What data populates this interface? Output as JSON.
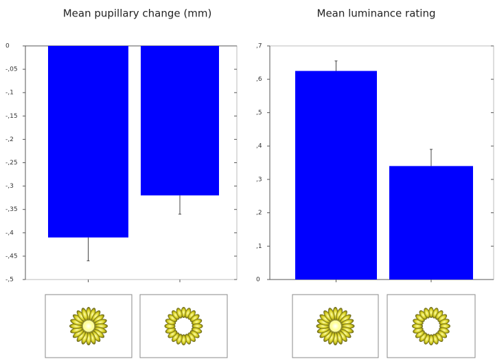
{
  "chart_data": [
    {
      "type": "bar",
      "title": "Mean pupillary change (mm)",
      "categories": [
        null,
        null
      ],
      "values": [
        -0.41,
        -0.32
      ],
      "errors": [
        0.05,
        0.04
      ],
      "color": "#0000ff",
      "ylim": [
        -0.5,
        0
      ],
      "yticks": [
        {
          "value": 0,
          "label": "0"
        },
        {
          "value": -0.05,
          "label": "-,05"
        },
        {
          "value": -0.1,
          "label": "-,1"
        },
        {
          "value": -0.15,
          "label": "-,15"
        },
        {
          "value": -0.2,
          "label": "-,2"
        },
        {
          "value": -0.25,
          "label": "-,25"
        },
        {
          "value": -0.3,
          "label": "-,3"
        },
        {
          "value": -0.35,
          "label": "-,35"
        },
        {
          "value": -0.4,
          "label": "-,4"
        },
        {
          "value": -0.45,
          "label": "-,45"
        },
        {
          "value": -0.5,
          "label": "-,5"
        }
      ]
    },
    {
      "type": "bar",
      "title": "Mean luminance rating",
      "categories": [
        null,
        null
      ],
      "values": [
        0.625,
        0.34
      ],
      "errors": [
        0.03,
        0.05
      ],
      "color": "#0000ff",
      "ylim": [
        0,
        0.7
      ],
      "yticks": [
        {
          "value": 0,
          "label": "0"
        },
        {
          "value": 0.1,
          "label": ",1"
        },
        {
          "value": 0.2,
          "label": ",2"
        },
        {
          "value": 0.3,
          "label": ",3"
        },
        {
          "value": 0.4,
          "label": ",4"
        },
        {
          "value": 0.5,
          "label": ",5"
        },
        {
          "value": 0.6,
          "label": ",6"
        },
        {
          "value": 0.7,
          "label": ",7"
        }
      ]
    }
  ]
}
